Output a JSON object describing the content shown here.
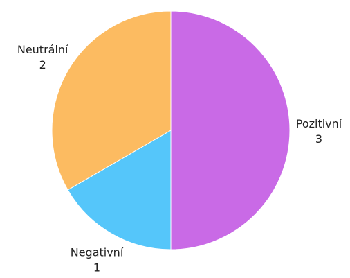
{
  "chart_data": {
    "type": "pie",
    "categories": [
      "Pozitivní",
      "Negativní",
      "Neutrální"
    ],
    "values": [
      3,
      1,
      2
    ],
    "colors": [
      "#c96ae6",
      "#55c6fa",
      "#fcbb61"
    ],
    "title": "",
    "legend": "none",
    "labels_outside": true,
    "value_labels": [
      "3",
      "1",
      "2"
    ]
  }
}
